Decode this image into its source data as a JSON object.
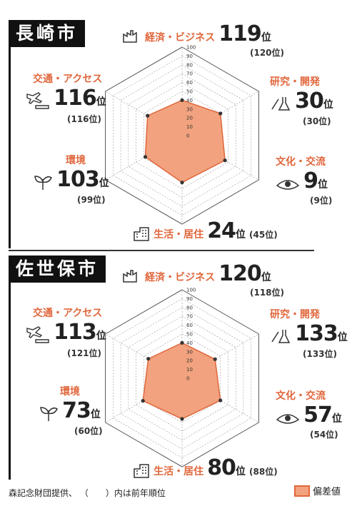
{
  "footer": {
    "note": "森記念財団提供、 （　　）内は前年順位"
  },
  "legend": {
    "label": "偏差値",
    "fill": "#f2a27e",
    "stroke": "#e0673c"
  },
  "colors": {
    "accent": "#e0673c",
    "city_bg": "#111111"
  },
  "chart_data": [
    {
      "type": "radar",
      "title": "長崎市",
      "axis_ticks": [
        "0",
        "10",
        "20",
        "30",
        "40",
        "50",
        "60",
        "70",
        "80",
        "90",
        "100"
      ],
      "rlim": [
        0,
        100
      ],
      "categories": [
        {
          "name": "経済・ビジネス",
          "rank": "119",
          "unit": "位",
          "prev": "(120位)",
          "icon": "factory-icon"
        },
        {
          "name": "研究・開発",
          "rank": "30",
          "unit": "位",
          "prev": "(30位)",
          "icon": "lab-icon"
        },
        {
          "name": "文化・交流",
          "rank": "9",
          "unit": "位",
          "prev": "(9位)",
          "icon": "eye-icon"
        },
        {
          "name": "生活・居住",
          "rank": "24",
          "unit": "位",
          "prev": "(45位)",
          "icon": "building-icon"
        },
        {
          "name": "環境",
          "rank": "103",
          "unit": "位",
          "prev": "(99位)",
          "icon": "plant-icon"
        },
        {
          "name": "交通・アクセス",
          "rank": "116",
          "unit": "位",
          "prev": "(116位)",
          "icon": "plane-icon"
        }
      ],
      "series": [
        {
          "values": [
            40,
            50,
            56,
            53,
            48,
            45
          ]
        }
      ]
    },
    {
      "type": "radar",
      "title": "佐世保市",
      "axis_ticks": [
        "0",
        "10",
        "20",
        "30",
        "40",
        "50",
        "60",
        "70",
        "80",
        "90",
        "100"
      ],
      "rlim": [
        0,
        100
      ],
      "categories": [
        {
          "name": "経済・ビジネス",
          "rank": "120",
          "unit": "位",
          "prev": "(118位)",
          "icon": "factory-icon"
        },
        {
          "name": "研究・開発",
          "rank": "133",
          "unit": "位",
          "prev": "(133位)",
          "icon": "lab-icon"
        },
        {
          "name": "文化・交流",
          "rank": "57",
          "unit": "位",
          "prev": "(54位)",
          "icon": "eye-icon"
        },
        {
          "name": "生活・居住",
          "rank": "80",
          "unit": "位",
          "prev": "(88位)",
          "icon": "building-icon"
        },
        {
          "name": "環境",
          "rank": "73",
          "unit": "位",
          "prev": "(60位)",
          "icon": "plant-icon"
        },
        {
          "name": "交通・アクセス",
          "rank": "113",
          "unit": "位",
          "prev": "(121位)",
          "icon": "plane-icon"
        }
      ],
      "series": [
        {
          "values": [
            40,
            43,
            50,
            46,
            51,
            44
          ]
        }
      ]
    }
  ]
}
